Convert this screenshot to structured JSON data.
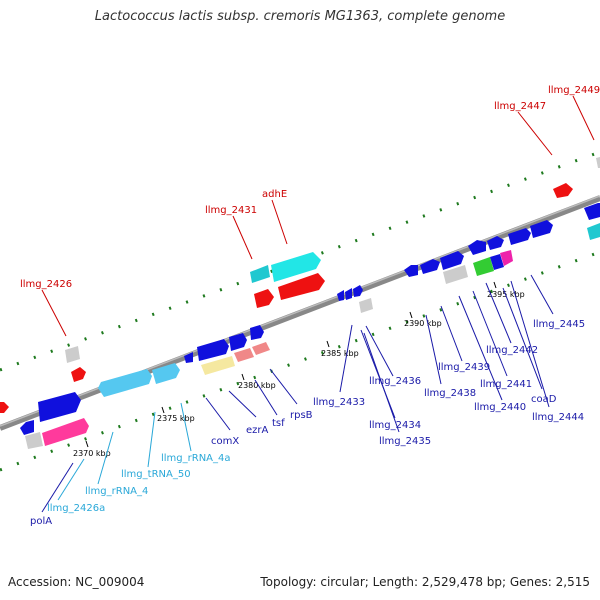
{
  "title": "Lactococcus lactis subsp. cremoris MG1363, complete genome",
  "footer": {
    "accession": "Accession: NC_009004",
    "summary": "Topology: circular; Length: 2,529,478 bp; Genes: 2,515"
  },
  "colors": {
    "backbone": "#888888",
    "tick": "#1e7a1e",
    "label_red": "#cc0000",
    "label_blue": "#1a1aa8",
    "label_cyan": "#2aa8d8",
    "axis_text": "#000000"
  },
  "scale_ticks": [
    "2370 kbp",
    "2375 kbp",
    "2380 kbp",
    "2385 kbp",
    "2390 kbp",
    "2395 kbp"
  ],
  "gene_labels": {
    "llmg_2426": "llmg_2426",
    "llmg_2431": "llmg_2431",
    "adhE": "adhE",
    "llmg_2447": "llmg_2447",
    "llmg_2449": "llmg_2449",
    "polA": "polA",
    "llmg_2426a": "llmg_2426a",
    "llmg_rRNA_4": "llmg_rRNA_4",
    "llmg_tRNA_50": "llmg_tRNA_50",
    "llmg_rRNA_4a": "llmg_rRNA_4a",
    "comX": "comX",
    "ezrA": "ezrA",
    "tsf": "tsf",
    "rpsB": "rpsB",
    "llmg_2433": "llmg_2433",
    "llmg_2434": "llmg_2434",
    "llmg_2435": "llmg_2435",
    "llmg_2436": "llmg_2436",
    "llmg_2438": "llmg_2438",
    "llmg_2439": "llmg_2439",
    "llmg_2440": "llmg_2440",
    "llmg_2441": "llmg_2441",
    "llmg_2442": "llmg_2442",
    "coaD": "coaD",
    "llmg_2444": "llmg_2444",
    "llmg_2445": "llmg_2445"
  }
}
